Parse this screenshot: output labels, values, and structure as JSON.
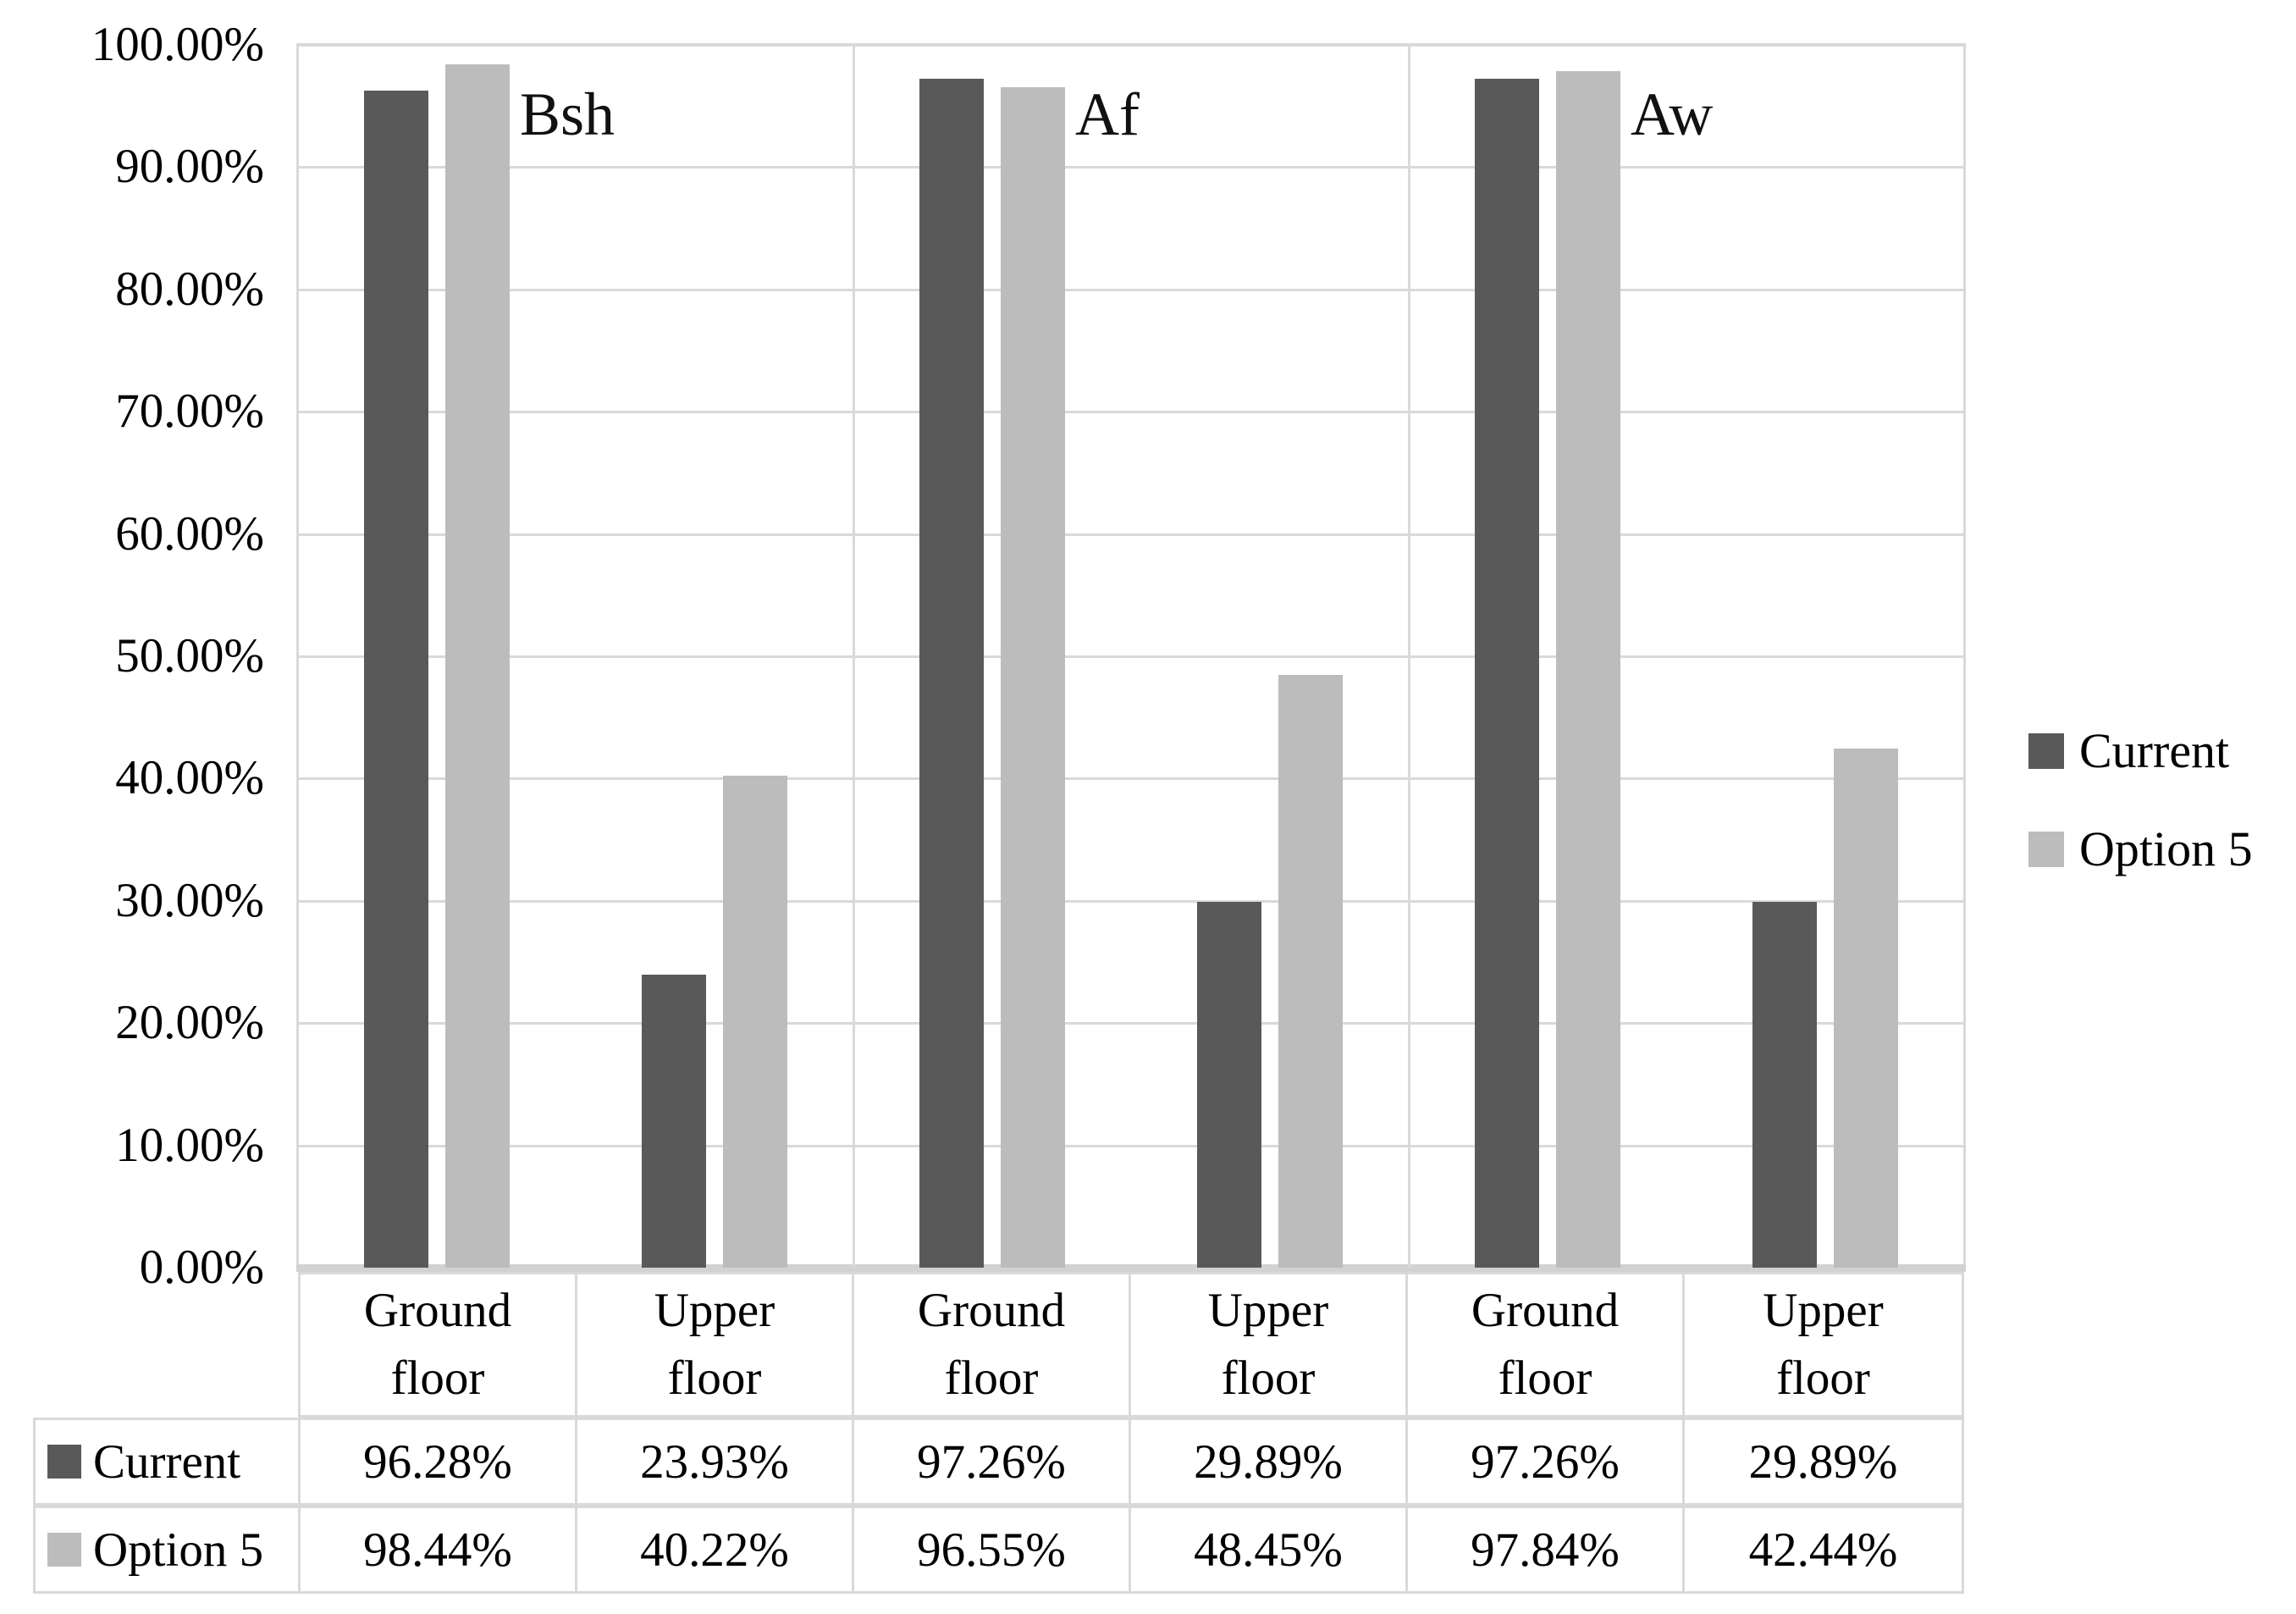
{
  "chart_data": {
    "type": "bar",
    "title": "",
    "groups": [
      "Bsh",
      "Af",
      "Aw"
    ],
    "categories": [
      "Ground floor",
      "Upper floor",
      "Ground floor",
      "Upper floor",
      "Ground floor",
      "Upper floor"
    ],
    "series": [
      {
        "name": "Current",
        "color": "#595959",
        "values": [
          96.28,
          23.93,
          97.26,
          29.89,
          97.26,
          29.89
        ],
        "labels": [
          "96.28%",
          "23.93%",
          "97.26%",
          "29.89%",
          "97.26%",
          "29.89%"
        ]
      },
      {
        "name": "Option 5",
        "color": "#bcbcbc",
        "values": [
          98.44,
          40.22,
          96.55,
          48.45,
          97.84,
          42.44
        ],
        "labels": [
          "98.44%",
          "40.22%",
          "96.55%",
          "48.45%",
          "97.84%",
          "42.44%"
        ]
      }
    ],
    "xlabel": "",
    "ylabel": "",
    "ylim": [
      0,
      100
    ],
    "yticks": [
      "100.00%",
      "90.00%",
      "80.00%",
      "70.00%",
      "60.00%",
      "50.00%",
      "40.00%",
      "30.00%",
      "20.00%",
      "10.00%",
      "0.00%"
    ],
    "grid": "horizontal",
    "legend_position": "right",
    "data_table_shown": true
  },
  "legend": {
    "items": [
      {
        "label": "Current",
        "color": "#595959"
      },
      {
        "label": "Option 5",
        "color": "#bcbcbc"
      }
    ]
  },
  "colors": {
    "gridline": "#d9d9d9",
    "axis_line": "#d2d2d2",
    "table_border": "#d9d9d9",
    "background": "#ffffff",
    "text": "#000000"
  }
}
